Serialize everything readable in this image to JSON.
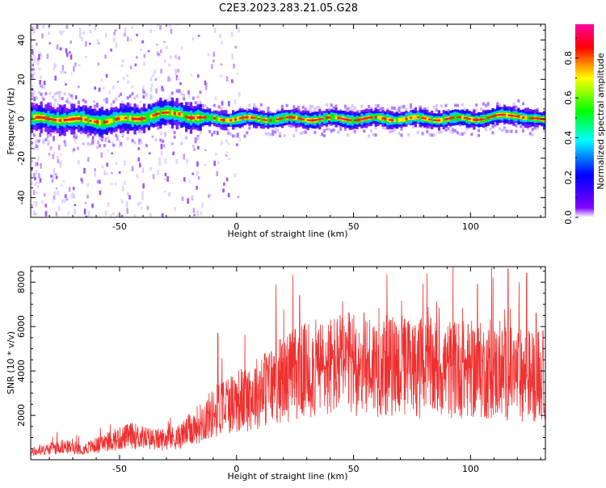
{
  "title": "C2E3.2023.283.21.05.G28",
  "chart_data": [
    {
      "type": "heatmap",
      "xlabel": "Height of straight line (km)",
      "ylabel": "Frequency (Hz)",
      "xlim": [
        -88,
        132
      ],
      "ylim": [
        -50,
        48
      ],
      "xticks": [
        -50,
        0,
        50,
        100
      ],
      "yticks": [
        -40,
        -20,
        0,
        20,
        40
      ],
      "band_center_hz": [
        {
          "x": -85,
          "y": 0
        },
        {
          "x": -75,
          "y": 0
        },
        {
          "x": -65,
          "y": -1
        },
        {
          "x": -55,
          "y": -1
        },
        {
          "x": -45,
          "y": 0
        },
        {
          "x": -35,
          "y": 2
        },
        {
          "x": -25,
          "y": 3
        },
        {
          "x": -20,
          "y": 1
        },
        {
          "x": -15,
          "y": 0
        },
        {
          "x": 0,
          "y": 0
        },
        {
          "x": 25,
          "y": 0
        },
        {
          "x": 50,
          "y": 0
        },
        {
          "x": 75,
          "y": 0
        },
        {
          "x": 100,
          "y": 0
        },
        {
          "x": 120,
          "y": 2
        },
        {
          "x": 130,
          "y": -1
        }
      ],
      "colorbar": {
        "label": "Normalized spectral amplitude",
        "ticks": [
          0.0,
          0.2,
          0.4,
          0.6,
          0.8
        ],
        "range": [
          0.0,
          0.97
        ],
        "colors": [
          "#ffffff",
          "#8000ff",
          "#0000ff",
          "#00ffff",
          "#00ff00",
          "#ffff00",
          "#ff0000",
          "#ff00a0"
        ]
      }
    },
    {
      "type": "line",
      "xlabel": "Height of straight line (km)",
      "ylabel": "SNR (10 * v/v)",
      "xlim": [
        -88,
        132
      ],
      "ylim": [
        0,
        8700
      ],
      "xticks": [
        -50,
        0,
        50,
        100
      ],
      "yticks": [
        2000,
        4000,
        6000,
        8000
      ],
      "color": "#f03030",
      "trend": [
        {
          "x": -88,
          "y": 300
        },
        {
          "x": -75,
          "y": 600
        },
        {
          "x": -65,
          "y": 500
        },
        {
          "x": -55,
          "y": 800
        },
        {
          "x": -45,
          "y": 1100
        },
        {
          "x": -35,
          "y": 900
        },
        {
          "x": -25,
          "y": 1000
        },
        {
          "x": -15,
          "y": 1700
        },
        {
          "x": -5,
          "y": 2500
        },
        {
          "x": 5,
          "y": 2800
        },
        {
          "x": 15,
          "y": 3400
        },
        {
          "x": 25,
          "y": 3900
        },
        {
          "x": 35,
          "y": 4100
        },
        {
          "x": 45,
          "y": 4300
        },
        {
          "x": 55,
          "y": 4300
        },
        {
          "x": 65,
          "y": 4200
        },
        {
          "x": 75,
          "y": 4200
        },
        {
          "x": 85,
          "y": 4100
        },
        {
          "x": 95,
          "y": 4100
        },
        {
          "x": 105,
          "y": 4000
        },
        {
          "x": 115,
          "y": 3900
        },
        {
          "x": 125,
          "y": 3800
        },
        {
          "x": 132,
          "y": 3800
        }
      ],
      "peaks": [
        {
          "x": -8,
          "y": 5700
        },
        {
          "x": 27,
          "y": 7400
        },
        {
          "x": 103,
          "y": 7900
        },
        {
          "x": 116,
          "y": 8600
        },
        {
          "x": 124,
          "y": 8400
        },
        {
          "x": 128,
          "y": 6600
        }
      ]
    }
  ]
}
